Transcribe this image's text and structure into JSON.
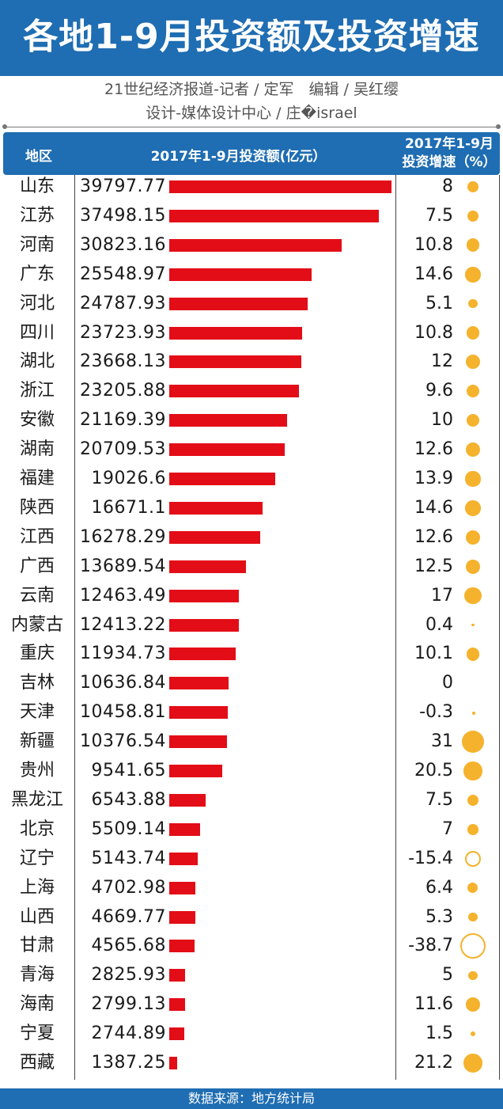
{
  "title": "各地1-9月投资额及投资增速",
  "credits": {
    "line1": "21世纪经济报道-记者 / 定军　编辑 / 吴红缨",
    "line2": "设计-媒体设计中心 / 庄�israel"
  },
  "header": {
    "region": "地区",
    "investment": "2017年1-9月投资额(亿元）",
    "growth_line1": "2017年1-9月",
    "growth_line2": "投资增速（%）"
  },
  "footer": "数据来源：地方统计局",
  "colors": {
    "banner": "#1f6db2",
    "bar": "#e30d17",
    "dot": "#f5b22c"
  },
  "chart_data": {
    "type": "bar",
    "categories": [
      "山东",
      "江苏",
      "河南",
      "广东",
      "河北",
      "四川",
      "湖北",
      "浙江",
      "安徽",
      "湖南",
      "福建",
      "陕西",
      "江西",
      "广西",
      "云南",
      "内蒙古",
      "重庆",
      "吉林",
      "天津",
      "新疆",
      "贵州",
      "黑龙江",
      "北京",
      "辽宁",
      "上海",
      "山西",
      "甘肃",
      "青海",
      "海南",
      "宁夏",
      "西藏"
    ],
    "series": [
      {
        "values": [
          39797.77,
          37498.15,
          30823.16,
          25548.97,
          24787.93,
          23723.93,
          23668.13,
          23205.88,
          21169.39,
          20709.53,
          19026.6,
          16671.1,
          16278.29,
          13689.54,
          12463.49,
          12413.22,
          11934.73,
          10636.84,
          10458.81,
          10376.54,
          9541.65,
          6543.88,
          5509.14,
          5143.74,
          4702.98,
          4669.77,
          4565.68,
          2825.93,
          2799.13,
          2744.89,
          1387.25
        ]
      },
      {
        "values": [
          8,
          7.5,
          10.8,
          14.6,
          5.1,
          10.8,
          12,
          9.6,
          10,
          12.6,
          13.9,
          14.6,
          12.6,
          12.5,
          17,
          0.4,
          10.1,
          0,
          -0.3,
          31,
          20.5,
          7.5,
          7,
          -15.4,
          6.4,
          5.3,
          -38.7,
          5,
          11.6,
          1.5,
          21.2
        ]
      }
    ],
    "value_labels": [
      "39797.77",
      "37498.15",
      "30823.16",
      "25548.97",
      "24787.93",
      "23723.93",
      "23668.13",
      "23205.88",
      "21169.39",
      "20709.53",
      "19026.6",
      "16671.1",
      "16278.29",
      "13689.54",
      "12463.49",
      "12413.22",
      "11934.73",
      "10636.84",
      "10458.81",
      "10376.54",
      "9541.65",
      "6543.88",
      "5509.14",
      "5143.74",
      "4702.98",
      "4669.77",
      "4565.68",
      "2825.93",
      "2799.13",
      "2744.89",
      "1387.25"
    ],
    "growth_labels": [
      "8",
      "7.5",
      "10.8",
      "14.6",
      "5.1",
      "10.8",
      "12",
      "9.6",
      "10",
      "12.6",
      "13.9",
      "14.6",
      "12.6",
      "12.5",
      "17",
      "0.4",
      "10.1",
      "0",
      "-0.3",
      "31",
      "20.5",
      "7.5",
      "7",
      "-15.4",
      "6.4",
      "5.3",
      "-38.7",
      "5",
      "11.6",
      "1.5",
      "21.2"
    ]
  }
}
